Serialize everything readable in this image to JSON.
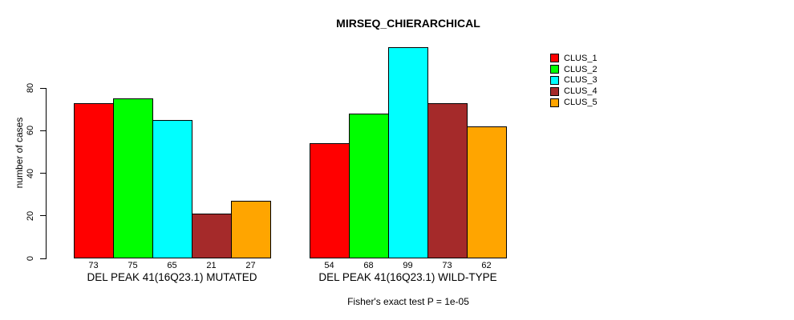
{
  "title": "MIRSEQ_CHIERARCHICAL",
  "chart_data": {
    "type": "bar",
    "title": "MIRSEQ_CHIERARCHICAL",
    "xlabel": "",
    "ylabel": "number of cases",
    "yticks": [
      0,
      20,
      40,
      60,
      80
    ],
    "ylim": [
      0,
      100
    ],
    "grid": false,
    "legend_position": "right",
    "series": [
      {
        "name": "CLUS_1",
        "color": "#FF0000"
      },
      {
        "name": "CLUS_2",
        "color": "#00FF00"
      },
      {
        "name": "CLUS_3",
        "color": "#00FFFF"
      },
      {
        "name": "CLUS_4",
        "color": "#A52A2A"
      },
      {
        "name": "CLUS_5",
        "color": "#FFA500"
      }
    ],
    "groups": [
      {
        "label": "DEL PEAK 41(16Q23.1) MUTATED",
        "values": [
          73,
          75,
          65,
          21,
          27
        ]
      },
      {
        "label": "DEL PEAK 41(16Q23.1) WILD-TYPE",
        "values": [
          54,
          68,
          99,
          73,
          62
        ]
      }
    ],
    "annotation": "Fisher's exact test P = 1e-05"
  }
}
